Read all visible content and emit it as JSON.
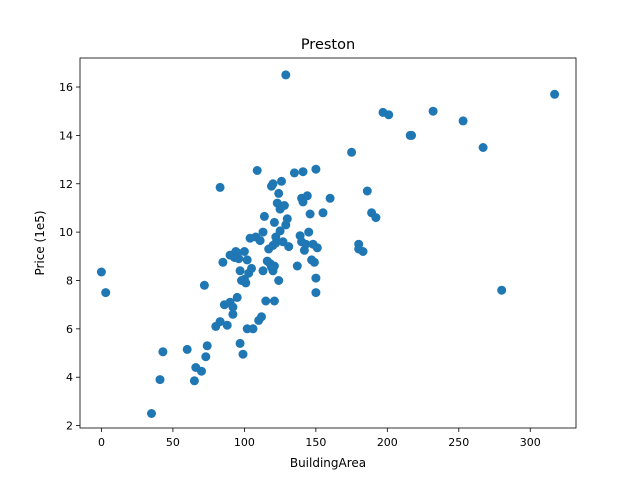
{
  "chart_data": {
    "type": "scatter",
    "title": "Preston",
    "xlabel": "BuildingArea",
    "ylabel": "Price (1e5)",
    "xlim": [
      -15,
      332
    ],
    "ylim": [
      1.9,
      17.2
    ],
    "xticks": [
      0,
      50,
      100,
      150,
      200,
      250,
      300
    ],
    "yticks": [
      2,
      4,
      6,
      8,
      10,
      12,
      14,
      16
    ],
    "grid": false,
    "legend": "none",
    "marker_color": "#1f77b4",
    "x": [
      0,
      3,
      35,
      41,
      43,
      60,
      65,
      66,
      70,
      72,
      73,
      74,
      80,
      83,
      83,
      85,
      86,
      88,
      90,
      90,
      92,
      92,
      93,
      94,
      95,
      95,
      96,
      97,
      97,
      98,
      99,
      100,
      100,
      101,
      102,
      102,
      103,
      104,
      105,
      106,
      108,
      109,
      110,
      111,
      112,
      113,
      113,
      114,
      115,
      116,
      117,
      118,
      119,
      119,
      120,
      120,
      120,
      121,
      121,
      121,
      122,
      122,
      123,
      124,
      124,
      125,
      125,
      126,
      127,
      128,
      129,
      129,
      130,
      131,
      135,
      137,
      139,
      140,
      140,
      141,
      141,
      142,
      143,
      144,
      145,
      146,
      147,
      148,
      149,
      150,
      150,
      150,
      151,
      155,
      160,
      175,
      180,
      180,
      183,
      186,
      189,
      192,
      197,
      201,
      216,
      217,
      232,
      253,
      267,
      280,
      317
    ],
    "y": [
      8.35,
      7.5,
      2.5,
      3.9,
      5.05,
      5.15,
      3.85,
      4.4,
      4.25,
      7.8,
      4.85,
      5.3,
      6.1,
      6.3,
      11.85,
      8.75,
      7.0,
      6.15,
      7.1,
      9.05,
      6.6,
      6.9,
      8.95,
      9.2,
      7.3,
      9.15,
      8.9,
      8.4,
      5.4,
      8.0,
      4.95,
      9.2,
      8.05,
      7.9,
      6.0,
      8.85,
      8.3,
      9.75,
      8.5,
      6.0,
      9.8,
      12.55,
      6.35,
      9.65,
      6.5,
      8.4,
      10.0,
      10.65,
      7.15,
      8.8,
      9.3,
      8.7,
      11.9,
      8.55,
      12.0,
      8.4,
      9.45,
      8.6,
      10.4,
      7.15,
      9.8,
      9.55,
      11.2,
      11.6,
      8.0,
      10.95,
      10.05,
      12.1,
      9.6,
      11.1,
      10.3,
      16.5,
      10.55,
      9.4,
      12.45,
      8.6,
      9.85,
      11.4,
      9.6,
      12.5,
      11.25,
      9.25,
      9.5,
      11.5,
      10.0,
      10.75,
      8.85,
      9.5,
      8.75,
      12.6,
      8.1,
      7.5,
      9.35,
      10.8,
      11.4,
      13.3,
      9.5,
      9.3,
      9.2,
      11.7,
      10.8,
      10.6,
      14.95,
      14.85,
      14.0,
      14.0,
      15.0,
      14.6,
      13.5,
      7.6,
      15.7
    ]
  }
}
